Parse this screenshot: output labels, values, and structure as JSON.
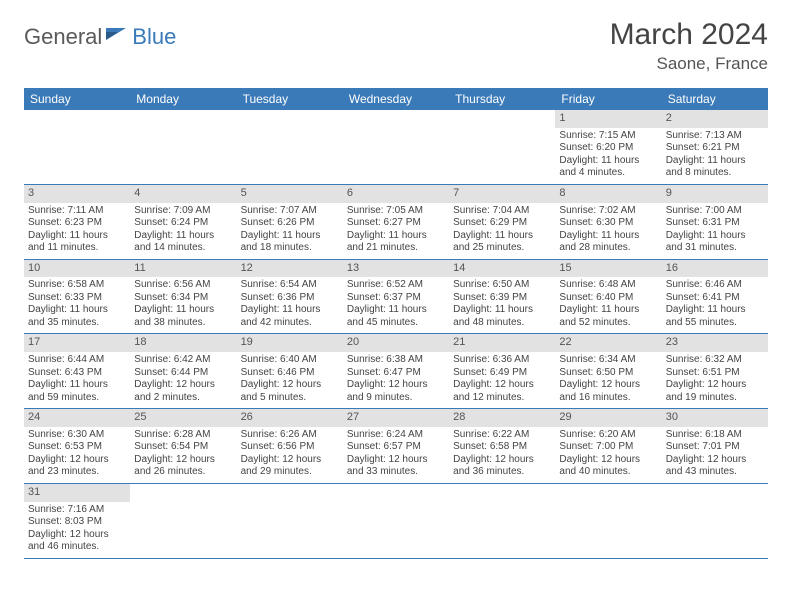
{
  "logo": {
    "part1": "General",
    "part2": "Blue",
    "icon_color": "#3a7ab8"
  },
  "title": "March 2024",
  "location": "Saone, France",
  "colors": {
    "header_bg": "#3a7ab8",
    "daynum_bg": "#e2e2e2",
    "row_border": "#3a7ab8",
    "text": "#444444",
    "logo_gray": "#5a5a5a"
  },
  "day_names": [
    "Sunday",
    "Monday",
    "Tuesday",
    "Wednesday",
    "Thursday",
    "Friday",
    "Saturday"
  ],
  "weeks": [
    [
      null,
      null,
      null,
      null,
      null,
      {
        "d": "1",
        "sunrise": "Sunrise: 7:15 AM",
        "sunset": "Sunset: 6:20 PM",
        "day1": "Daylight: 11 hours",
        "day2": "and 4 minutes."
      },
      {
        "d": "2",
        "sunrise": "Sunrise: 7:13 AM",
        "sunset": "Sunset: 6:21 PM",
        "day1": "Daylight: 11 hours",
        "day2": "and 8 minutes."
      }
    ],
    [
      {
        "d": "3",
        "sunrise": "Sunrise: 7:11 AM",
        "sunset": "Sunset: 6:23 PM",
        "day1": "Daylight: 11 hours",
        "day2": "and 11 minutes."
      },
      {
        "d": "4",
        "sunrise": "Sunrise: 7:09 AM",
        "sunset": "Sunset: 6:24 PM",
        "day1": "Daylight: 11 hours",
        "day2": "and 14 minutes."
      },
      {
        "d": "5",
        "sunrise": "Sunrise: 7:07 AM",
        "sunset": "Sunset: 6:26 PM",
        "day1": "Daylight: 11 hours",
        "day2": "and 18 minutes."
      },
      {
        "d": "6",
        "sunrise": "Sunrise: 7:05 AM",
        "sunset": "Sunset: 6:27 PM",
        "day1": "Daylight: 11 hours",
        "day2": "and 21 minutes."
      },
      {
        "d": "7",
        "sunrise": "Sunrise: 7:04 AM",
        "sunset": "Sunset: 6:29 PM",
        "day1": "Daylight: 11 hours",
        "day2": "and 25 minutes."
      },
      {
        "d": "8",
        "sunrise": "Sunrise: 7:02 AM",
        "sunset": "Sunset: 6:30 PM",
        "day1": "Daylight: 11 hours",
        "day2": "and 28 minutes."
      },
      {
        "d": "9",
        "sunrise": "Sunrise: 7:00 AM",
        "sunset": "Sunset: 6:31 PM",
        "day1": "Daylight: 11 hours",
        "day2": "and 31 minutes."
      }
    ],
    [
      {
        "d": "10",
        "sunrise": "Sunrise: 6:58 AM",
        "sunset": "Sunset: 6:33 PM",
        "day1": "Daylight: 11 hours",
        "day2": "and 35 minutes."
      },
      {
        "d": "11",
        "sunrise": "Sunrise: 6:56 AM",
        "sunset": "Sunset: 6:34 PM",
        "day1": "Daylight: 11 hours",
        "day2": "and 38 minutes."
      },
      {
        "d": "12",
        "sunrise": "Sunrise: 6:54 AM",
        "sunset": "Sunset: 6:36 PM",
        "day1": "Daylight: 11 hours",
        "day2": "and 42 minutes."
      },
      {
        "d": "13",
        "sunrise": "Sunrise: 6:52 AM",
        "sunset": "Sunset: 6:37 PM",
        "day1": "Daylight: 11 hours",
        "day2": "and 45 minutes."
      },
      {
        "d": "14",
        "sunrise": "Sunrise: 6:50 AM",
        "sunset": "Sunset: 6:39 PM",
        "day1": "Daylight: 11 hours",
        "day2": "and 48 minutes."
      },
      {
        "d": "15",
        "sunrise": "Sunrise: 6:48 AM",
        "sunset": "Sunset: 6:40 PM",
        "day1": "Daylight: 11 hours",
        "day2": "and 52 minutes."
      },
      {
        "d": "16",
        "sunrise": "Sunrise: 6:46 AM",
        "sunset": "Sunset: 6:41 PM",
        "day1": "Daylight: 11 hours",
        "day2": "and 55 minutes."
      }
    ],
    [
      {
        "d": "17",
        "sunrise": "Sunrise: 6:44 AM",
        "sunset": "Sunset: 6:43 PM",
        "day1": "Daylight: 11 hours",
        "day2": "and 59 minutes."
      },
      {
        "d": "18",
        "sunrise": "Sunrise: 6:42 AM",
        "sunset": "Sunset: 6:44 PM",
        "day1": "Daylight: 12 hours",
        "day2": "and 2 minutes."
      },
      {
        "d": "19",
        "sunrise": "Sunrise: 6:40 AM",
        "sunset": "Sunset: 6:46 PM",
        "day1": "Daylight: 12 hours",
        "day2": "and 5 minutes."
      },
      {
        "d": "20",
        "sunrise": "Sunrise: 6:38 AM",
        "sunset": "Sunset: 6:47 PM",
        "day1": "Daylight: 12 hours",
        "day2": "and 9 minutes."
      },
      {
        "d": "21",
        "sunrise": "Sunrise: 6:36 AM",
        "sunset": "Sunset: 6:49 PM",
        "day1": "Daylight: 12 hours",
        "day2": "and 12 minutes."
      },
      {
        "d": "22",
        "sunrise": "Sunrise: 6:34 AM",
        "sunset": "Sunset: 6:50 PM",
        "day1": "Daylight: 12 hours",
        "day2": "and 16 minutes."
      },
      {
        "d": "23",
        "sunrise": "Sunrise: 6:32 AM",
        "sunset": "Sunset: 6:51 PM",
        "day1": "Daylight: 12 hours",
        "day2": "and 19 minutes."
      }
    ],
    [
      {
        "d": "24",
        "sunrise": "Sunrise: 6:30 AM",
        "sunset": "Sunset: 6:53 PM",
        "day1": "Daylight: 12 hours",
        "day2": "and 23 minutes."
      },
      {
        "d": "25",
        "sunrise": "Sunrise: 6:28 AM",
        "sunset": "Sunset: 6:54 PM",
        "day1": "Daylight: 12 hours",
        "day2": "and 26 minutes."
      },
      {
        "d": "26",
        "sunrise": "Sunrise: 6:26 AM",
        "sunset": "Sunset: 6:56 PM",
        "day1": "Daylight: 12 hours",
        "day2": "and 29 minutes."
      },
      {
        "d": "27",
        "sunrise": "Sunrise: 6:24 AM",
        "sunset": "Sunset: 6:57 PM",
        "day1": "Daylight: 12 hours",
        "day2": "and 33 minutes."
      },
      {
        "d": "28",
        "sunrise": "Sunrise: 6:22 AM",
        "sunset": "Sunset: 6:58 PM",
        "day1": "Daylight: 12 hours",
        "day2": "and 36 minutes."
      },
      {
        "d": "29",
        "sunrise": "Sunrise: 6:20 AM",
        "sunset": "Sunset: 7:00 PM",
        "day1": "Daylight: 12 hours",
        "day2": "and 40 minutes."
      },
      {
        "d": "30",
        "sunrise": "Sunrise: 6:18 AM",
        "sunset": "Sunset: 7:01 PM",
        "day1": "Daylight: 12 hours",
        "day2": "and 43 minutes."
      }
    ],
    [
      {
        "d": "31",
        "sunrise": "Sunrise: 7:16 AM",
        "sunset": "Sunset: 8:03 PM",
        "day1": "Daylight: 12 hours",
        "day2": "and 46 minutes."
      },
      null,
      null,
      null,
      null,
      null,
      null
    ]
  ]
}
